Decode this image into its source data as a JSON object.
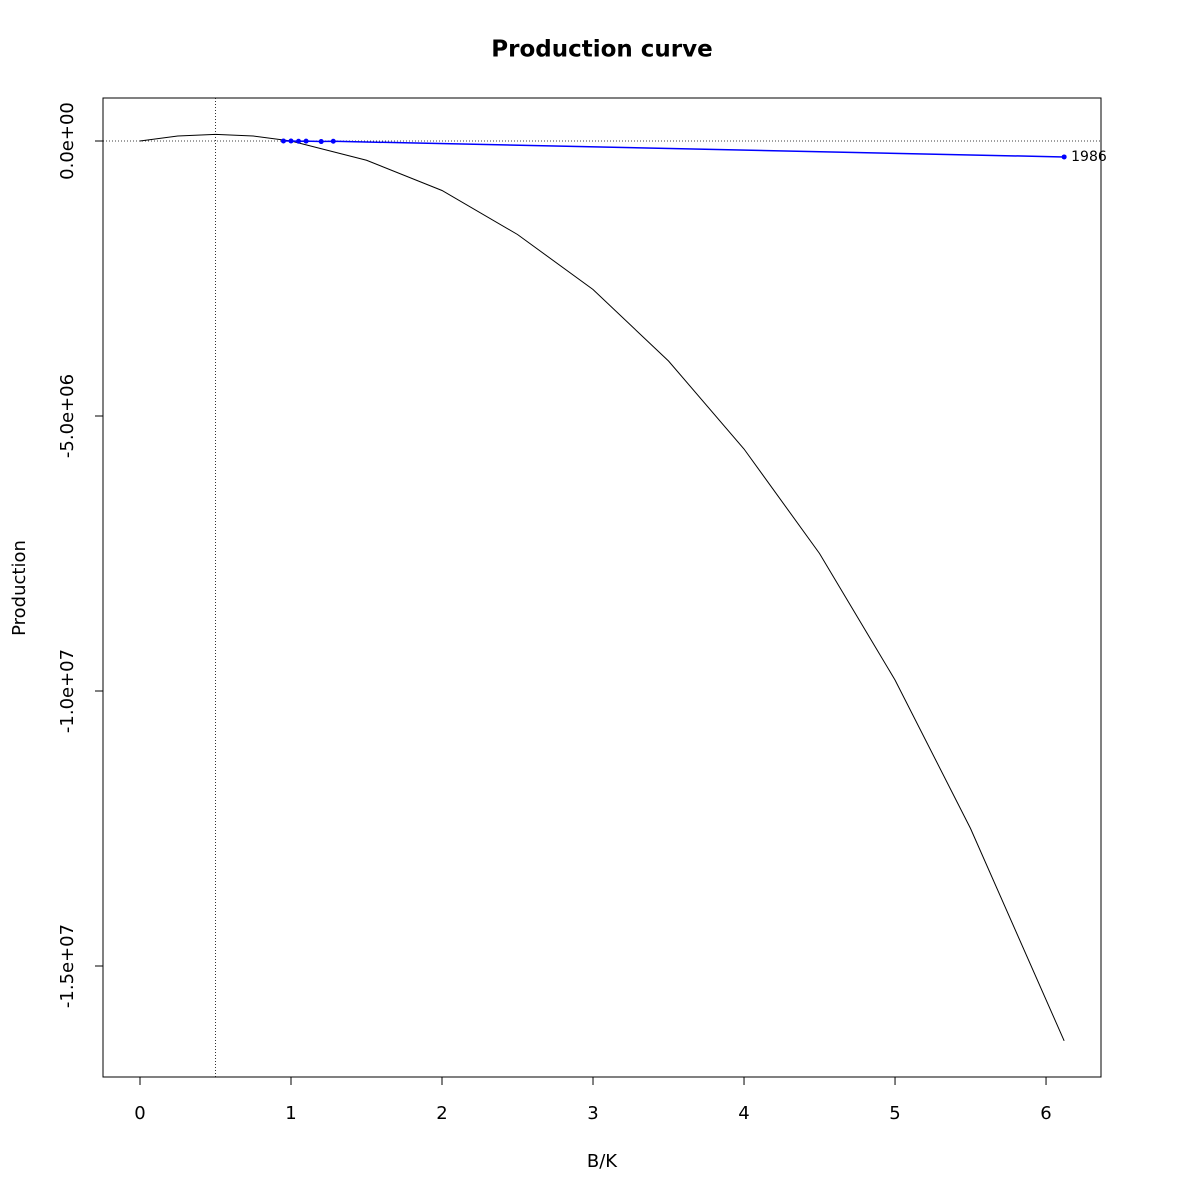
{
  "chart_data": {
    "type": "production",
    "title": "Production curve",
    "x_label": "B/K",
    "y_label": "Production",
    "xlim": [
      -0.245,
      6.364
    ],
    "ylim": [
      -17018000,
      781800
    ],
    "xticks": [
      0,
      1,
      2,
      3,
      4,
      5,
      6
    ],
    "yticks": [
      {
        "value": 0,
        "label": "0.0e+00"
      },
      {
        "value": -5000000,
        "label": "-5.0e+06"
      },
      {
        "value": -10000000,
        "label": "-1.0e+07"
      },
      {
        "value": -15000000,
        "label": "-1.5e+07"
      }
    ],
    "hline": 0,
    "vline": 0.5,
    "curve": {
      "color": "#000000",
      "x": [
        0,
        0.25,
        0.5,
        0.75,
        1,
        1.5,
        2,
        2.5,
        3,
        3.5,
        4,
        4.5,
        5,
        5.5,
        6.12
      ],
      "values": [
        0,
        90000,
        120000,
        90000,
        0,
        -350000,
        -900000,
        -1700000,
        -2700000,
        -4000000,
        -5600000,
        -7500000,
        -9800000,
        -12500000,
        -16360000
      ]
    },
    "observed": {
      "color": "#0000ff",
      "x": [
        0.95,
        1.0,
        1.05,
        1.1,
        1.2,
        1.28,
        6.12
      ],
      "values": [
        0,
        0,
        -5000,
        -2000,
        -10000,
        -5000,
        -290000
      ],
      "labels": [
        null,
        null,
        null,
        null,
        null,
        null,
        "1986"
      ]
    }
  }
}
